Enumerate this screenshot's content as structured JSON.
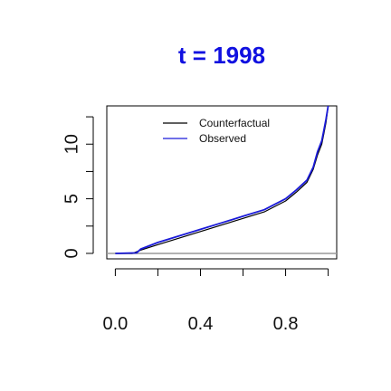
{
  "chart_data": {
    "type": "line",
    "title": "t = 1998",
    "title_color": "#1010e0",
    "xlabel": "",
    "ylabel": "",
    "xlim": [
      -0.04,
      1.04
    ],
    "ylim": [
      -0.5,
      13.5
    ],
    "x_ticks": [
      0.0,
      0.2,
      0.4,
      0.6,
      0.8,
      1.0
    ],
    "x_tick_labels": [
      "0.0",
      "",
      "0.4",
      "",
      "0.8",
      ""
    ],
    "y_ticks": [
      0,
      2.5,
      5,
      7.5,
      10,
      12.5
    ],
    "y_tick_labels": [
      "0",
      "",
      "5",
      "",
      "10",
      ""
    ],
    "reference_line": {
      "y": 0,
      "color": "#999999"
    },
    "legend": {
      "position": "top",
      "entries": [
        {
          "label": "Counterfactual",
          "color": "#000000"
        },
        {
          "label": "Observed",
          "color": "#1a1ad9"
        }
      ]
    },
    "series": [
      {
        "name": "Counterfactual",
        "color": "#000000",
        "x": [
          0.0,
          0.08,
          0.12,
          0.2,
          0.3,
          0.4,
          0.5,
          0.6,
          0.7,
          0.8,
          0.85,
          0.9,
          0.93,
          0.95,
          0.97,
          0.98,
          0.99,
          1.0
        ],
        "y": [
          0.0,
          0.0,
          0.3,
          0.8,
          1.4,
          2.0,
          2.6,
          3.2,
          3.8,
          4.8,
          5.6,
          6.5,
          7.7,
          9.0,
          10.0,
          11.0,
          12.0,
          13.5
        ]
      },
      {
        "name": "Observed",
        "color": "#1a1ad9",
        "x": [
          0.0,
          0.1,
          0.12,
          0.2,
          0.3,
          0.4,
          0.5,
          0.6,
          0.7,
          0.8,
          0.85,
          0.9,
          0.93,
          0.95,
          0.97,
          0.98,
          0.99,
          1.0
        ],
        "y": [
          0.0,
          0.05,
          0.4,
          1.0,
          1.6,
          2.2,
          2.8,
          3.4,
          4.0,
          5.0,
          5.8,
          6.7,
          7.9,
          9.3,
          10.3,
          11.3,
          12.3,
          13.5
        ]
      }
    ]
  }
}
